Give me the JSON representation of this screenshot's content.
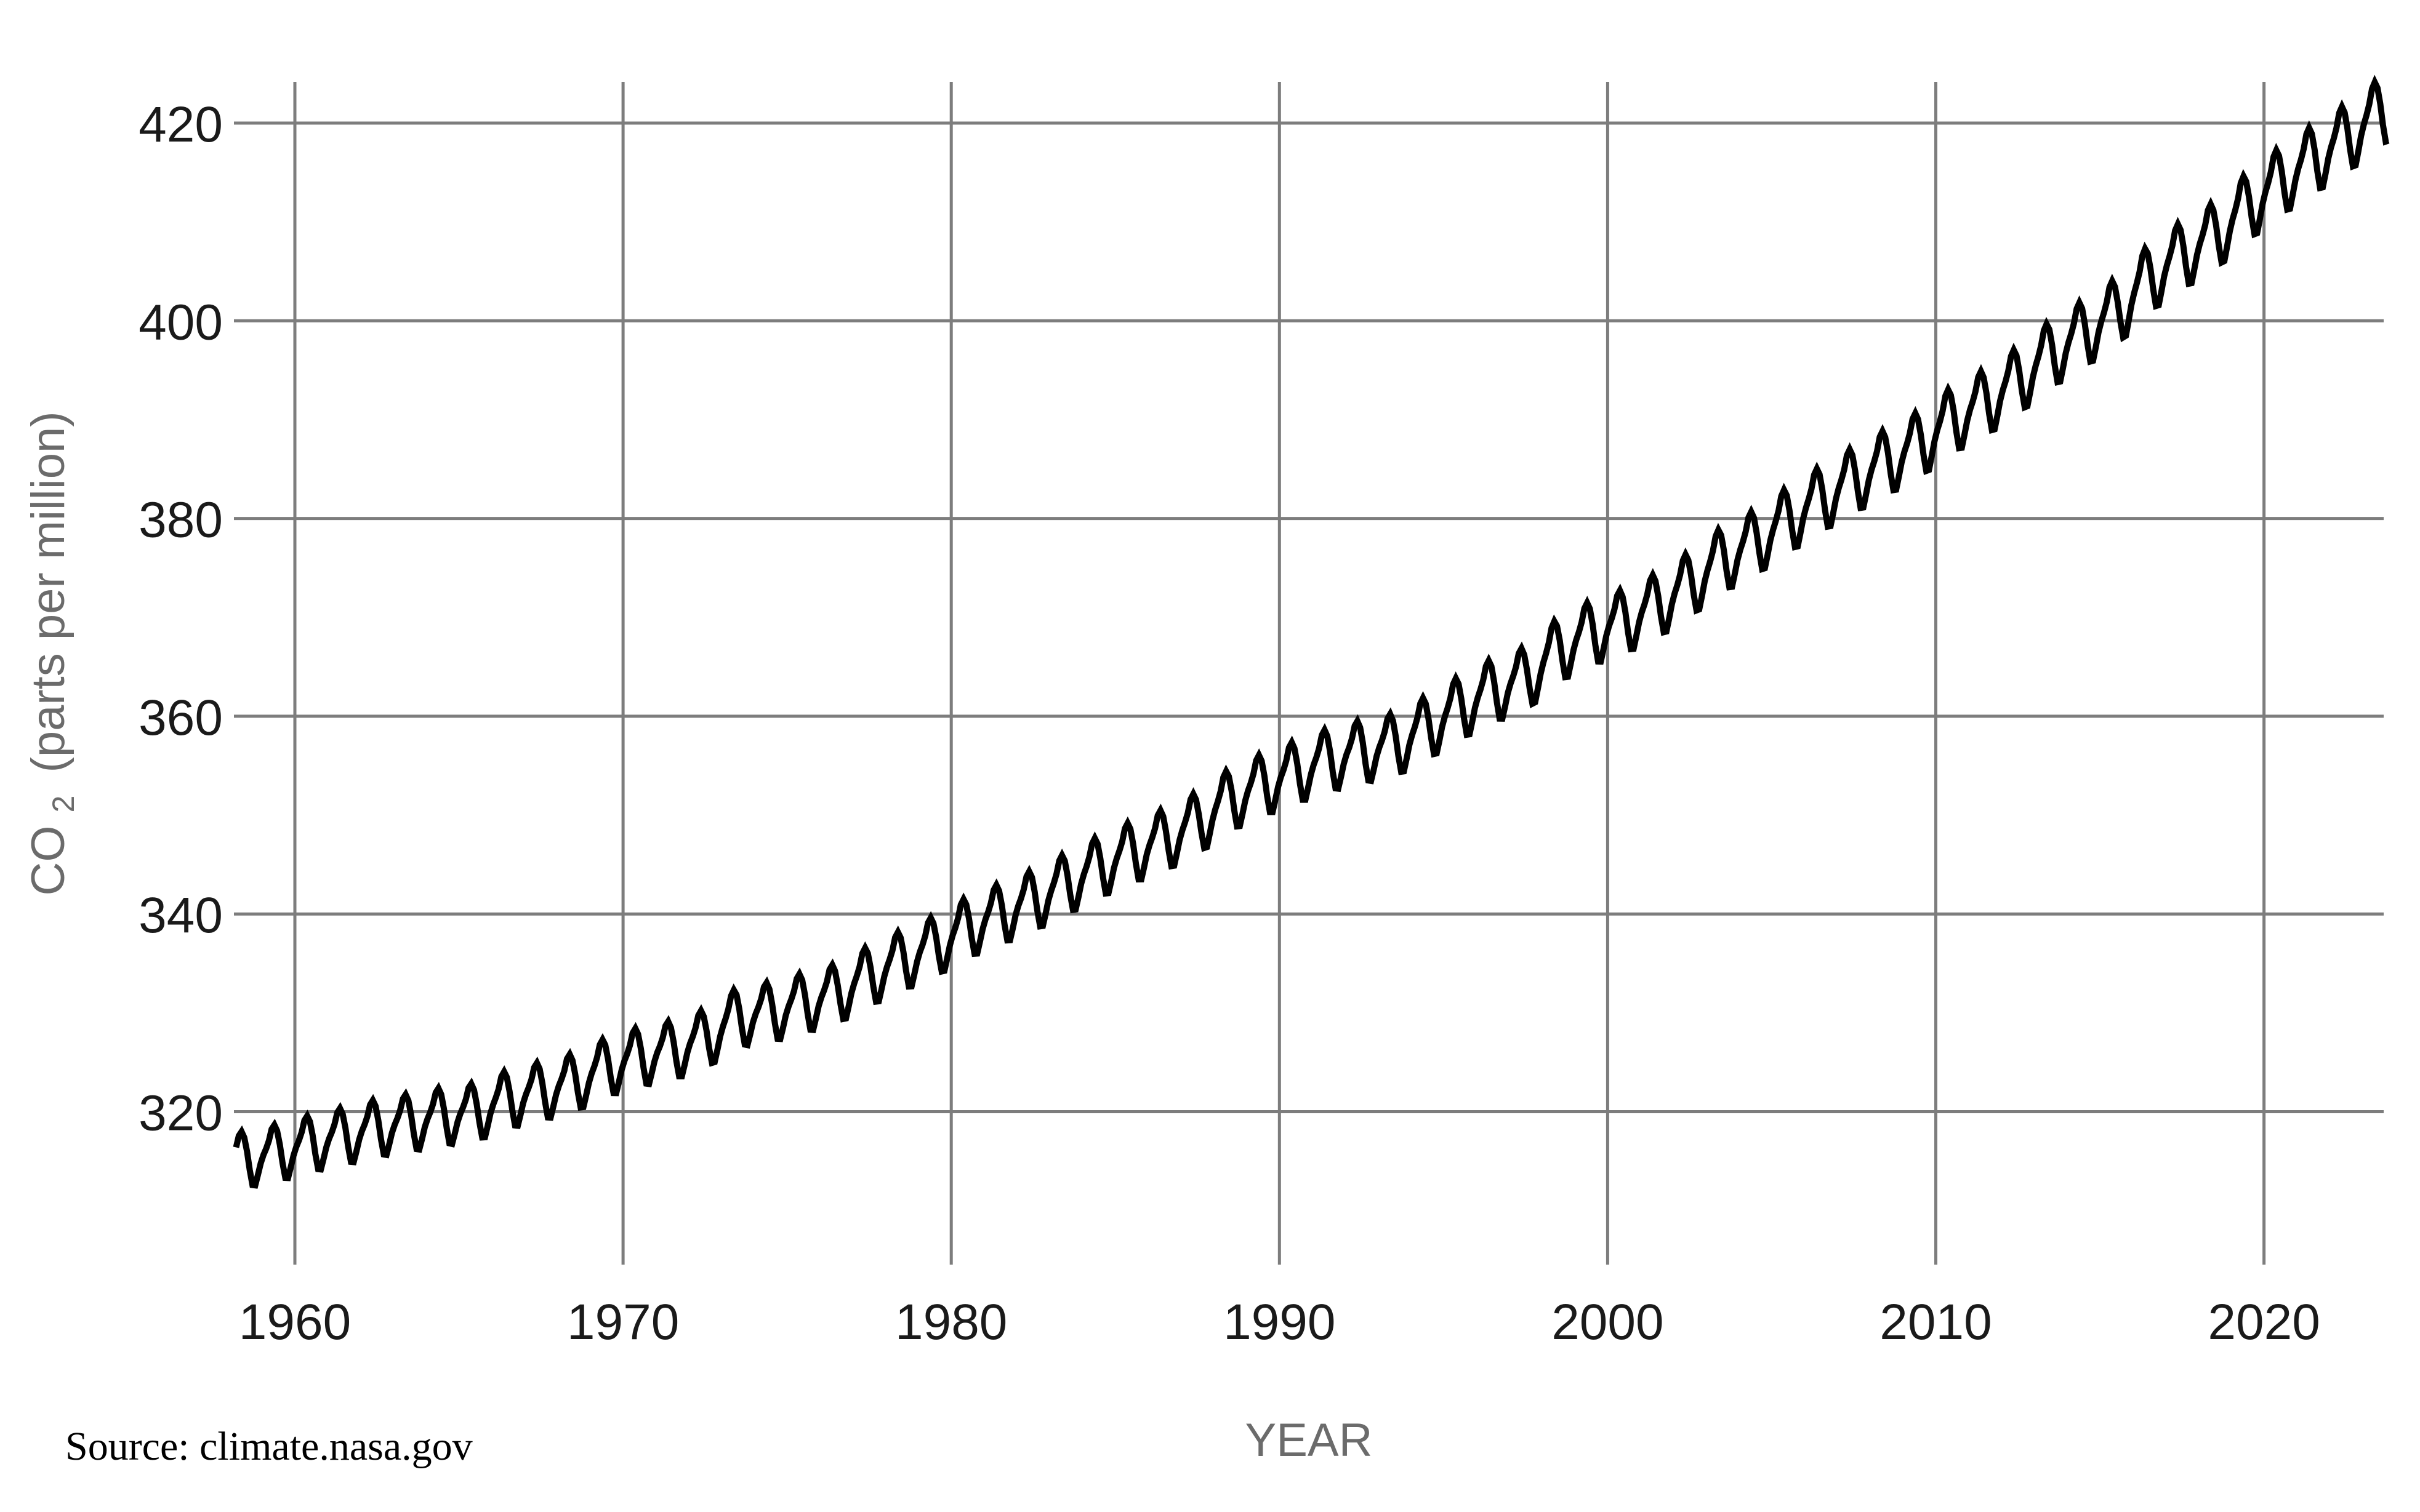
{
  "figure": {
    "background_color": "#ffffff",
    "gridline_color": "#7d7d7d",
    "line_color": "#000000",
    "tick_label_color": "#1a1a1a",
    "axis_title_color": "#6b6b6b"
  },
  "axes": {
    "y": {
      "title_main": "CO",
      "title_sub": "2",
      "title_rest": "(parts per million)",
      "ticks": [
        420,
        400,
        380,
        360,
        340,
        320
      ]
    },
    "x": {
      "title": "YEAR",
      "ticks": [
        1960,
        1970,
        1980,
        1990,
        2000,
        2010,
        2020
      ]
    }
  },
  "source": {
    "text": "Source: climate.nasa.gov"
  },
  "chart_data": {
    "type": "line",
    "title": "",
    "xlabel": "YEAR",
    "ylabel": "CO2 (parts per million)",
    "xlim": [
      1957.7,
      2023.9
    ],
    "ylim_ticks": [
      320,
      420
    ],
    "grid": true,
    "legend": false,
    "series": [
      {
        "name": "CO2",
        "sampling": "monthly",
        "start_year": 1958,
        "start_month": 3,
        "end_year": 2023,
        "end_month": 10,
        "years": [
          1958,
          1959,
          1960,
          1961,
          1962,
          1963,
          1964,
          1965,
          1966,
          1967,
          1968,
          1969,
          1970,
          1971,
          1972,
          1973,
          1974,
          1975,
          1976,
          1977,
          1978,
          1979,
          1980,
          1981,
          1982,
          1983,
          1984,
          1985,
          1986,
          1987,
          1988,
          1989,
          1990,
          1991,
          1992,
          1993,
          1994,
          1995,
          1996,
          1997,
          1998,
          1999,
          2000,
          2001,
          2002,
          2003,
          2004,
          2005,
          2006,
          2007,
          2008,
          2009,
          2010,
          2011,
          2012,
          2013,
          2014,
          2015,
          2016,
          2017,
          2018,
          2019,
          2020,
          2021,
          2022,
          2023
        ],
        "annual_means": [
          315.3,
          315.97,
          316.91,
          317.64,
          318.45,
          318.99,
          319.62,
          320.04,
          321.37,
          322.18,
          323.05,
          324.62,
          325.68,
          326.32,
          327.46,
          329.68,
          330.19,
          331.12,
          332.03,
          333.84,
          335.41,
          336.84,
          338.76,
          340.12,
          341.48,
          343.15,
          344.87,
          346.35,
          347.61,
          349.31,
          351.69,
          353.2,
          354.45,
          355.7,
          356.54,
          357.21,
          358.96,
          360.97,
          362.74,
          363.88,
          366.84,
          368.54,
          369.71,
          371.32,
          373.45,
          375.98,
          377.7,
          379.98,
          382.09,
          384.02,
          385.83,
          387.64,
          390.1,
          391.85,
          394.06,
          396.74,
          398.81,
          401.01,
          404.41,
          406.76,
          408.72,
          411.66,
          414.24,
          416.45,
          418.56,
          421.08
        ],
        "seasonal_anomalies_by_month": [
          -0.05,
          0.6,
          1.4,
          2.6,
          3.0,
          2.3,
          0.7,
          -1.4,
          -3.1,
          -3.2,
          -2.1,
          -0.9
        ],
        "seasonal_amplitude_scale": {
          "start": 0.92,
          "end": 1.12
        },
        "min_value": 312.4,
        "max_value": 424.1
      }
    ]
  }
}
